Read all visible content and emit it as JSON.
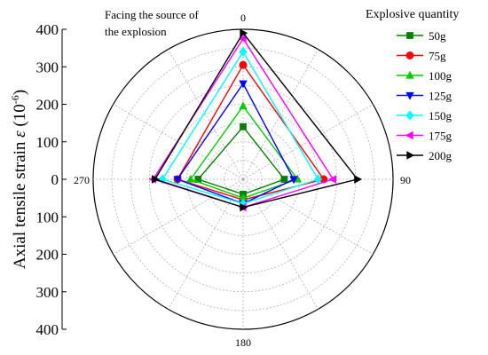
{
  "chart_data": {
    "type": "radar",
    "angles": [
      0,
      90,
      180,
      270
    ],
    "angle_labels": [
      "0",
      "90",
      "180",
      "270"
    ],
    "rmax": 400,
    "grid": true,
    "ylabel_main": "Axial tensile strain ",
    "ylabel_symbol": "ε",
    "ylabel_unit": " (10",
    "ylabel_exp": "-6",
    "ylabel_close": ")",
    "yticks": [
      "400",
      "300",
      "200",
      "100",
      "0",
      "100",
      "200",
      "300",
      "400"
    ],
    "annotation_line1": "Facing the source of",
    "annotation_line2": "the explosion",
    "legend_title": "Explosive quantity",
    "legend_position": "right",
    "series": [
      {
        "name": "50g",
        "color": "#008000",
        "marker": "square",
        "values": [
          140,
          110,
          40,
          120
        ]
      },
      {
        "name": "75g",
        "color": "#ff0000",
        "marker": "circle",
        "values": [
          305,
          215,
          55,
          175
        ]
      },
      {
        "name": "100g",
        "color": "#00cc00",
        "marker": "triangle-up",
        "values": [
          195,
          145,
          50,
          140
        ]
      },
      {
        "name": "125g",
        "color": "#0000ff",
        "marker": "triangle-down",
        "values": [
          255,
          135,
          65,
          175
        ]
      },
      {
        "name": "150g",
        "color": "#00ffff",
        "marker": "diamond",
        "values": [
          340,
          200,
          65,
          215
        ]
      },
      {
        "name": "175g",
        "color": "#ff00ff",
        "marker": "triangle-left",
        "values": [
          375,
          240,
          75,
          240
        ]
      },
      {
        "name": "200g",
        "color": "#000000",
        "marker": "triangle-right",
        "values": [
          390,
          305,
          75,
          235
        ]
      }
    ]
  }
}
